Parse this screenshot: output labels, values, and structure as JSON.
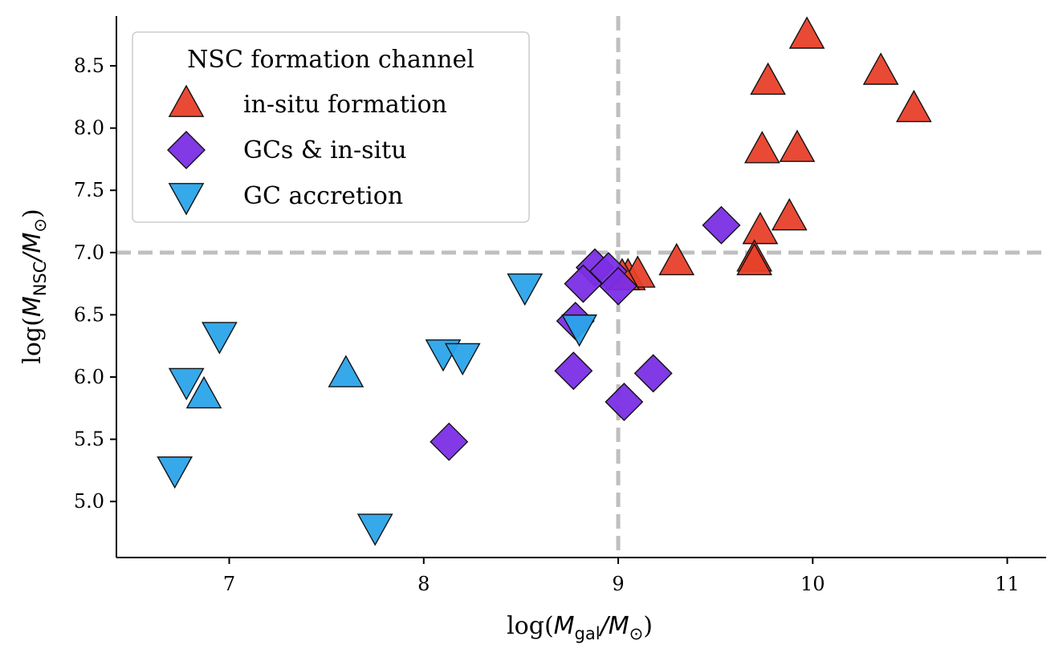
{
  "chart_data": {
    "type": "scatter",
    "xlabel": "log(M_gal/M_⊙)",
    "ylabel": "log(M_NSC/M_⊙)",
    "xlim": [
      6.42,
      11.2
    ],
    "ylim": [
      4.55,
      8.9
    ],
    "x_ticks": [
      "7",
      "8",
      "9",
      "10",
      "11"
    ],
    "y_ticks": [
      "5.0",
      "5.5",
      "6.0",
      "6.5",
      "7.0",
      "7.5",
      "8.0",
      "8.5"
    ],
    "reference_lines": {
      "vertical_x": 9.0,
      "horizontal_y": 7.0,
      "style": "dashed",
      "color": "#bfbfbf"
    },
    "legend": {
      "title": "NSC formation channel",
      "placement": "top-left"
    },
    "series": [
      {
        "name": "in-situ formation",
        "marker": "triangle-up",
        "color": "#e8402a",
        "points": [
          [
            9.97,
            8.74
          ],
          [
            10.35,
            8.45
          ],
          [
            10.52,
            8.15
          ],
          [
            9.77,
            8.37
          ],
          [
            9.74,
            7.82
          ],
          [
            9.92,
            7.83
          ],
          [
            9.88,
            7.28
          ],
          [
            9.73,
            7.17
          ],
          [
            9.7,
            6.95
          ],
          [
            9.7,
            6.92
          ],
          [
            9.3,
            6.92
          ],
          [
            9.05,
            6.8
          ],
          [
            9.1,
            6.82
          ],
          [
            9.02,
            6.8
          ]
        ]
      },
      {
        "name": "GCs & in-situ",
        "marker": "diamond",
        "color": "#7b2ee5",
        "points": [
          [
            9.53,
            7.22
          ],
          [
            8.88,
            6.88
          ],
          [
            8.95,
            6.85
          ],
          [
            8.82,
            6.75
          ],
          [
            9.0,
            6.73
          ],
          [
            8.78,
            6.45
          ],
          [
            8.77,
            6.05
          ],
          [
            9.18,
            6.03
          ],
          [
            9.03,
            5.8
          ],
          [
            8.13,
            5.48
          ]
        ]
      },
      {
        "name": "GC accretion",
        "marker": "triangle-down",
        "color": "#2ba4ea",
        "points": [
          [
            8.52,
            6.73
          ],
          [
            8.8,
            6.4
          ],
          [
            6.95,
            6.34
          ],
          [
            8.1,
            6.2
          ],
          [
            8.2,
            6.17
          ],
          [
            6.78,
            5.97
          ],
          [
            6.72,
            5.26
          ],
          [
            7.75,
            4.8
          ]
        ]
      },
      {
        "name": "",
        "marker": "triangle-up",
        "color": "#2ba4ea",
        "points": [
          [
            7.6,
            6.02
          ],
          [
            6.87,
            5.85
          ]
        ]
      }
    ]
  }
}
